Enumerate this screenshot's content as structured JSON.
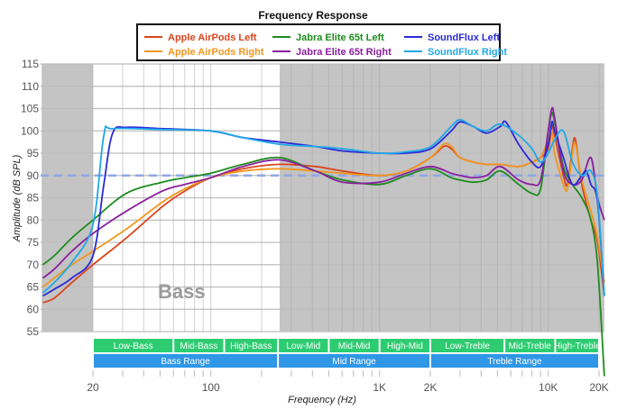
{
  "chart_data": {
    "type": "line",
    "title": "Frequency Response",
    "xlabel": "Frequency (Hz)",
    "ylabel": "Amplitude (dB SPL)",
    "xscale": "log",
    "xlim": [
      10,
      21500
    ],
    "ylim": [
      55,
      115
    ],
    "grid": true,
    "legend_position": "top",
    "x_ticks": [
      {
        "value": 20,
        "label": "20"
      },
      {
        "value": 100,
        "label": "100"
      },
      {
        "value": 1000,
        "label": "1K"
      },
      {
        "value": 2000,
        "label": "2K"
      },
      {
        "value": 10000,
        "label": "10K"
      },
      {
        "value": 20000,
        "label": "20K"
      }
    ],
    "y_ticks": [
      55,
      60,
      65,
      70,
      75,
      80,
      85,
      90,
      95,
      100,
      105,
      110,
      115
    ],
    "reference_line": {
      "value": 90,
      "style": "dashed",
      "color": "#8fa7e6"
    },
    "shaded_regions": [
      {
        "from": 10,
        "to": 20
      },
      {
        "from": 256,
        "to": 21500
      }
    ],
    "region_label": "Bass",
    "bands": [
      {
        "label": "Low-Bass",
        "from": 20,
        "to": 60,
        "row": 1
      },
      {
        "label": "Mid-Bass",
        "from": 60,
        "to": 120,
        "row": 1
      },
      {
        "label": "High-Bass",
        "from": 120,
        "to": 250,
        "row": 1
      },
      {
        "label": "Low-Mid",
        "from": 250,
        "to": 500,
        "row": 1
      },
      {
        "label": "Mid-Mid",
        "from": 500,
        "to": 1000,
        "row": 1
      },
      {
        "label": "High-Mid",
        "from": 1000,
        "to": 2000,
        "row": 1
      },
      {
        "label": "Low-Treble",
        "from": 2000,
        "to": 5500,
        "row": 1
      },
      {
        "label": "Mid-Treble",
        "from": 5500,
        "to": 11000,
        "row": 1
      },
      {
        "label": "High-Treble",
        "from": 11000,
        "to": 20000,
        "row": 1
      },
      {
        "label": "Bass Range",
        "from": 20,
        "to": 250,
        "row": 2
      },
      {
        "label": "Mid Range",
        "from": 250,
        "to": 2000,
        "row": 2
      },
      {
        "label": "Treble Range",
        "from": 2000,
        "to": 20000,
        "row": 2
      }
    ],
    "band_colors": {
      "row1": "#2ecc71",
      "row2": "#2f97e6"
    },
    "series": [
      {
        "name": "Apple AirPods Left",
        "color": "#d9451c",
        "points": [
          [
            10.1,
            61.5
          ],
          [
            11.8,
            62.5
          ],
          [
            15,
            66
          ],
          [
            20,
            70
          ],
          [
            31.6,
            76
          ],
          [
            51.5,
            83
          ],
          [
            70,
            86.5
          ],
          [
            100,
            89.5
          ],
          [
            155,
            91.5
          ],
          [
            256,
            92.5
          ],
          [
            417,
            92
          ],
          [
            605,
            91
          ],
          [
            1000,
            90
          ],
          [
            1440,
            91
          ],
          [
            2010,
            94
          ],
          [
            2400,
            96.5
          ],
          [
            2660,
            96
          ],
          [
            3000,
            94
          ],
          [
            3590,
            93
          ],
          [
            4300,
            92.5
          ],
          [
            5200,
            92.5
          ],
          [
            6680,
            92
          ],
          [
            8000,
            93
          ],
          [
            9000,
            94
          ],
          [
            10000,
            96
          ],
          [
            10500,
            101
          ],
          [
            10900,
            99
          ],
          [
            12300,
            90
          ],
          [
            13000,
            88
          ],
          [
            13900,
            96
          ],
          [
            14500,
            98
          ],
          [
            15800,
            88
          ],
          [
            17900,
            80
          ],
          [
            19600,
            75
          ],
          [
            21500,
            63
          ]
        ]
      },
      {
        "name": "Apple AirPods Right",
        "color": "#f0961e",
        "points": [
          [
            10.1,
            65
          ],
          [
            11.8,
            67
          ],
          [
            15,
            70
          ],
          [
            20,
            73
          ],
          [
            31.6,
            78
          ],
          [
            51.5,
            84
          ],
          [
            70,
            87
          ],
          [
            100,
            89.5
          ],
          [
            155,
            91
          ],
          [
            256,
            91.5
          ],
          [
            417,
            91
          ],
          [
            605,
            90.5
          ],
          [
            1000,
            90
          ],
          [
            1440,
            91
          ],
          [
            2010,
            94
          ],
          [
            2400,
            97
          ],
          [
            2660,
            96.5
          ],
          [
            3000,
            94
          ],
          [
            3590,
            93
          ],
          [
            4300,
            92.5
          ],
          [
            5200,
            92.5
          ],
          [
            6680,
            92
          ],
          [
            8000,
            93
          ],
          [
            9000,
            94
          ],
          [
            10000,
            98
          ],
          [
            10500,
            100
          ],
          [
            10900,
            95
          ],
          [
            12300,
            88
          ],
          [
            13000,
            87
          ],
          [
            13900,
            95
          ],
          [
            14500,
            97
          ],
          [
            15800,
            89
          ],
          [
            17900,
            82
          ],
          [
            19600,
            76
          ],
          [
            21500,
            66
          ]
        ]
      },
      {
        "name": "Jabra Elite 65t Left",
        "color": "#1e8c1e",
        "points": [
          [
            10.1,
            70
          ],
          [
            11.8,
            72
          ],
          [
            15,
            76
          ],
          [
            20,
            80
          ],
          [
            31.6,
            86
          ],
          [
            51.5,
            88.5
          ],
          [
            70,
            89.5
          ],
          [
            100,
            90.5
          ],
          [
            155,
            92.5
          ],
          [
            256,
            94
          ],
          [
            417,
            91
          ],
          [
            605,
            89
          ],
          [
            1000,
            88
          ],
          [
            1440,
            90
          ],
          [
            2010,
            91.5
          ],
          [
            2660,
            89.5
          ],
          [
            3000,
            89
          ],
          [
            3590,
            88.5
          ],
          [
            4300,
            89
          ],
          [
            5200,
            91
          ],
          [
            6680,
            88
          ],
          [
            8000,
            86
          ],
          [
            9000,
            87
          ],
          [
            10000,
            100
          ],
          [
            10500,
            104
          ],
          [
            10900,
            102
          ],
          [
            12300,
            92
          ],
          [
            13900,
            88
          ],
          [
            15800,
            85
          ],
          [
            17900,
            80
          ],
          [
            19600,
            70
          ],
          [
            21500,
            45
          ]
        ]
      },
      {
        "name": "Jabra Elite 65t Right",
        "color": "#8b1fa0",
        "points": [
          [
            10.1,
            67
          ],
          [
            11.8,
            69
          ],
          [
            15,
            73
          ],
          [
            20,
            77
          ],
          [
            31.6,
            82
          ],
          [
            51.5,
            86.5
          ],
          [
            70,
            88
          ],
          [
            100,
            89.5
          ],
          [
            155,
            92
          ],
          [
            256,
            93.5
          ],
          [
            417,
            91
          ],
          [
            605,
            88.5
          ],
          [
            1000,
            88.5
          ],
          [
            1440,
            90.5
          ],
          [
            2010,
            92
          ],
          [
            2660,
            90.5
          ],
          [
            3000,
            90
          ],
          [
            3590,
            89.5
          ],
          [
            4300,
            90
          ],
          [
            5200,
            92
          ],
          [
            6680,
            89
          ],
          [
            8000,
            88
          ],
          [
            9000,
            89
          ],
          [
            10000,
            100
          ],
          [
            10500,
            105
          ],
          [
            10900,
            103
          ],
          [
            12300,
            91
          ],
          [
            13900,
            88
          ],
          [
            15800,
            89
          ],
          [
            17900,
            94
          ],
          [
            19600,
            85
          ],
          [
            21500,
            80
          ]
        ]
      },
      {
        "name": "SoundFlux Left",
        "color": "#2a2ad8",
        "points": [
          [
            10.1,
            63
          ],
          [
            11.8,
            64.5
          ],
          [
            15,
            67
          ],
          [
            20,
            72
          ],
          [
            23.2,
            88
          ],
          [
            26.2,
            99.5
          ],
          [
            31.6,
            100.8
          ],
          [
            51.5,
            100.5
          ],
          [
            100,
            100
          ],
          [
            155,
            98.5
          ],
          [
            256,
            97.5
          ],
          [
            417,
            96.5
          ],
          [
            605,
            95.5
          ],
          [
            1000,
            95
          ],
          [
            1440,
            95
          ],
          [
            2010,
            96
          ],
          [
            2660,
            100
          ],
          [
            3000,
            102
          ],
          [
            3590,
            101
          ],
          [
            4300,
            99.5
          ],
          [
            5200,
            101
          ],
          [
            5600,
            102
          ],
          [
            6680,
            97
          ],
          [
            8000,
            93
          ],
          [
            9000,
            92
          ],
          [
            10000,
            97
          ],
          [
            10500,
            102
          ],
          [
            10900,
            100
          ],
          [
            12300,
            94
          ],
          [
            13900,
            88
          ],
          [
            15800,
            90
          ],
          [
            16800,
            91
          ],
          [
            17900,
            88
          ],
          [
            19600,
            84
          ],
          [
            21500,
            63
          ]
        ]
      },
      {
        "name": "SoundFlux Right",
        "color": "#1fa8e8",
        "points": [
          [
            10.1,
            63.7
          ],
          [
            11.8,
            66
          ],
          [
            15,
            70.5
          ],
          [
            20,
            79
          ],
          [
            23.2,
            99
          ],
          [
            26.2,
            100.5
          ],
          [
            51.5,
            100.3
          ],
          [
            100,
            100
          ],
          [
            155,
            98.5
          ],
          [
            256,
            97
          ],
          [
            417,
            96.5
          ],
          [
            605,
            96
          ],
          [
            1000,
            95
          ],
          [
            1440,
            95.3
          ],
          [
            2010,
            96.5
          ],
          [
            2660,
            101
          ],
          [
            3000,
            102.5
          ],
          [
            3590,
            101
          ],
          [
            4300,
            100
          ],
          [
            5200,
            101.5
          ],
          [
            6680,
            99
          ],
          [
            8000,
            96
          ],
          [
            9000,
            93
          ],
          [
            10000,
            95
          ],
          [
            10900,
            98
          ],
          [
            12300,
            100
          ],
          [
            13900,
            93
          ],
          [
            15800,
            90
          ],
          [
            17900,
            91
          ],
          [
            19600,
            85
          ],
          [
            21500,
            63
          ]
        ]
      }
    ]
  }
}
